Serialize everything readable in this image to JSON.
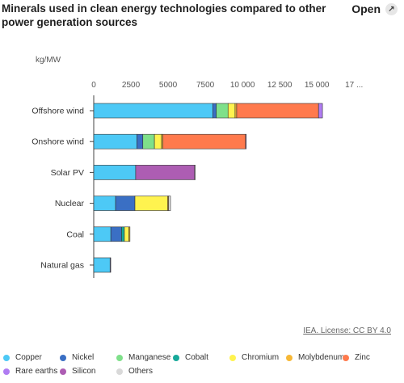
{
  "header": {
    "title": "Minerals used in clean energy technologies compared to other power generation sources",
    "open_label": "Open",
    "open_icon": "expand-arrow-icon"
  },
  "source_label": "IEA. License: CC BY 4.0",
  "chart_data": {
    "type": "bar",
    "orientation": "horizontal",
    "stacked": true,
    "title": "Minerals used in clean energy technologies compared to other power generation sources",
    "unit_label": "kg/MW",
    "xlim": [
      0,
      17000
    ],
    "x_ticks": [
      "0",
      "2500",
      "5000",
      "7500",
      "10 000",
      "12 500",
      "15 000",
      "17 ..."
    ],
    "grid": false,
    "legend_position": "bottom",
    "categories": [
      "Offshore wind",
      "Onshore wind",
      "Solar PV",
      "Nuclear",
      "Coal",
      "Natural gas"
    ],
    "series": [
      {
        "name": "Copper",
        "color": "#4dc9f6",
        "values": [
          8000,
          2900,
          2820,
          1470,
          1150,
          1100
        ]
      },
      {
        "name": "Nickel",
        "color": "#3a6fc4",
        "values": [
          240,
          400,
          0,
          1300,
          720,
          16
        ]
      },
      {
        "name": "Manganese",
        "color": "#7fe08a",
        "values": [
          790,
          780,
          0,
          0,
          0,
          0
        ]
      },
      {
        "name": "Cobalt",
        "color": "#17a99a",
        "values": [
          0,
          0,
          0,
          0,
          190,
          0
        ]
      },
      {
        "name": "Chromium",
        "color": "#fff34f",
        "values": [
          470,
          470,
          0,
          2190,
          310,
          0
        ]
      },
      {
        "name": "Molybdenum",
        "color": "#f7b836",
        "values": [
          110,
          99,
          0,
          70,
          66,
          0
        ]
      },
      {
        "name": "Zinc",
        "color": "#ff7a4d",
        "values": [
          5500,
          5560,
          0,
          0,
          0,
          0
        ]
      },
      {
        "name": "Rare earths",
        "color": "#b07cf2",
        "values": [
          265,
          14,
          0,
          0,
          0,
          0
        ]
      },
      {
        "name": "Silicon",
        "color": "#ad5db3",
        "values": [
          0,
          0,
          3960,
          0,
          0,
          0
        ]
      },
      {
        "name": "Others",
        "color": "#d9d9d9",
        "values": [
          0,
          0,
          30,
          130,
          0,
          0
        ]
      }
    ]
  }
}
